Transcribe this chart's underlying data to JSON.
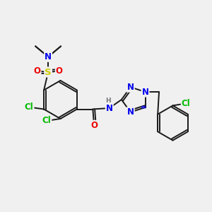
{
  "background_color": "#f0f0f0",
  "bond_color": "#1a1a1a",
  "atom_colors": {
    "C": "#1a1a1a",
    "N": "#0000ee",
    "O": "#ee0000",
    "S": "#cccc00",
    "Cl": "#00bb00",
    "H": "#777777"
  },
  "figsize": [
    3.0,
    3.0
  ],
  "dpi": 100
}
